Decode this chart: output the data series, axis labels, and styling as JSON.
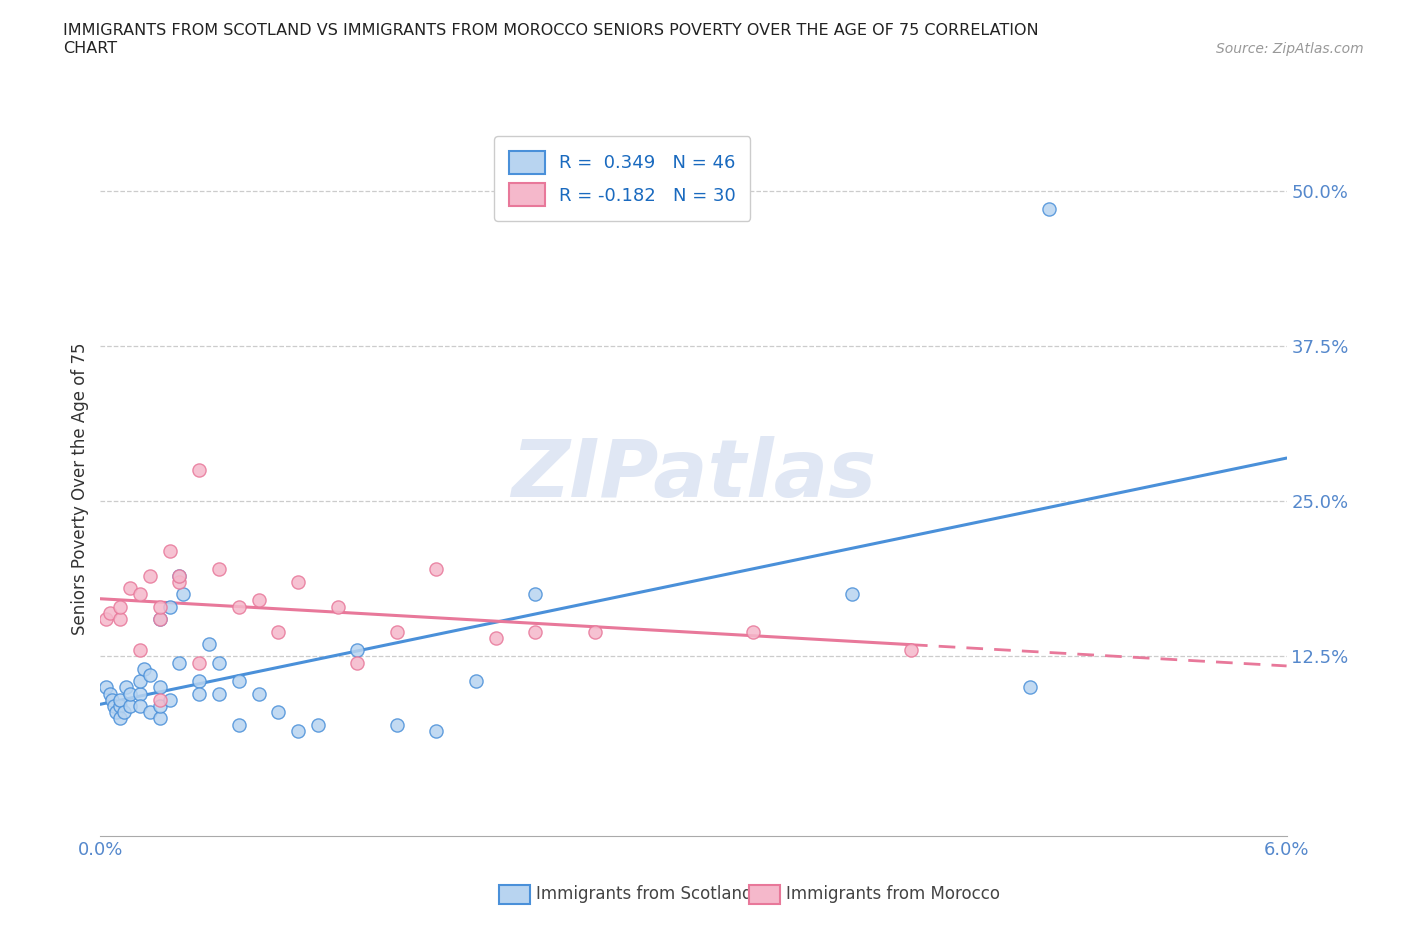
{
  "title": "IMMIGRANTS FROM SCOTLAND VS IMMIGRANTS FROM MOROCCO SENIORS POVERTY OVER THE AGE OF 75 CORRELATION\nCHART",
  "source": "Source: ZipAtlas.com",
  "xlabel": "",
  "ylabel": "Seniors Poverty Over the Age of 75",
  "xlim": [
    0.0,
    0.06
  ],
  "ylim": [
    -0.02,
    0.54
  ],
  "xticks": [
    0.0,
    0.01,
    0.02,
    0.03,
    0.04,
    0.05,
    0.06
  ],
  "xticklabels": [
    "0.0%",
    "",
    "",
    "",
    "",
    "",
    "6.0%"
  ],
  "yticks": [
    0.125,
    0.25,
    0.375,
    0.5
  ],
  "yticklabels": [
    "12.5%",
    "25.0%",
    "37.5%",
    "50.0%"
  ],
  "scotland_color": "#b8d4f0",
  "morocco_color": "#f5b8cb",
  "scotland_line_color": "#4a90d9",
  "morocco_line_color": "#e8789a",
  "scotland_R": 0.349,
  "scotland_N": 46,
  "morocco_R": -0.182,
  "morocco_N": 30,
  "watermark": "ZIPatlas",
  "scotland_x": [
    0.0003,
    0.0005,
    0.0006,
    0.0007,
    0.0008,
    0.001,
    0.001,
    0.001,
    0.0012,
    0.0013,
    0.0015,
    0.0015,
    0.002,
    0.002,
    0.002,
    0.0022,
    0.0025,
    0.0025,
    0.003,
    0.003,
    0.003,
    0.003,
    0.0035,
    0.0035,
    0.004,
    0.004,
    0.0042,
    0.005,
    0.005,
    0.0055,
    0.006,
    0.006,
    0.007,
    0.007,
    0.008,
    0.009,
    0.01,
    0.011,
    0.013,
    0.015,
    0.017,
    0.019,
    0.022,
    0.038,
    0.047,
    0.048
  ],
  "scotland_y": [
    0.1,
    0.095,
    0.09,
    0.085,
    0.08,
    0.085,
    0.075,
    0.09,
    0.08,
    0.1,
    0.085,
    0.095,
    0.095,
    0.085,
    0.105,
    0.115,
    0.11,
    0.08,
    0.075,
    0.1,
    0.155,
    0.085,
    0.09,
    0.165,
    0.12,
    0.19,
    0.175,
    0.105,
    0.095,
    0.135,
    0.095,
    0.12,
    0.105,
    0.07,
    0.095,
    0.08,
    0.065,
    0.07,
    0.13,
    0.07,
    0.065,
    0.105,
    0.175,
    0.175,
    0.1,
    0.485
  ],
  "morocco_x": [
    0.0003,
    0.0005,
    0.001,
    0.001,
    0.0015,
    0.002,
    0.002,
    0.0025,
    0.003,
    0.003,
    0.003,
    0.0035,
    0.004,
    0.004,
    0.005,
    0.005,
    0.006,
    0.007,
    0.008,
    0.009,
    0.01,
    0.012,
    0.013,
    0.015,
    0.017,
    0.02,
    0.022,
    0.025,
    0.033,
    0.041
  ],
  "morocco_y": [
    0.155,
    0.16,
    0.155,
    0.165,
    0.18,
    0.175,
    0.13,
    0.19,
    0.155,
    0.165,
    0.09,
    0.21,
    0.185,
    0.19,
    0.275,
    0.12,
    0.195,
    0.165,
    0.17,
    0.145,
    0.185,
    0.165,
    0.12,
    0.145,
    0.195,
    0.14,
    0.145,
    0.145,
    0.145,
    0.13
  ]
}
